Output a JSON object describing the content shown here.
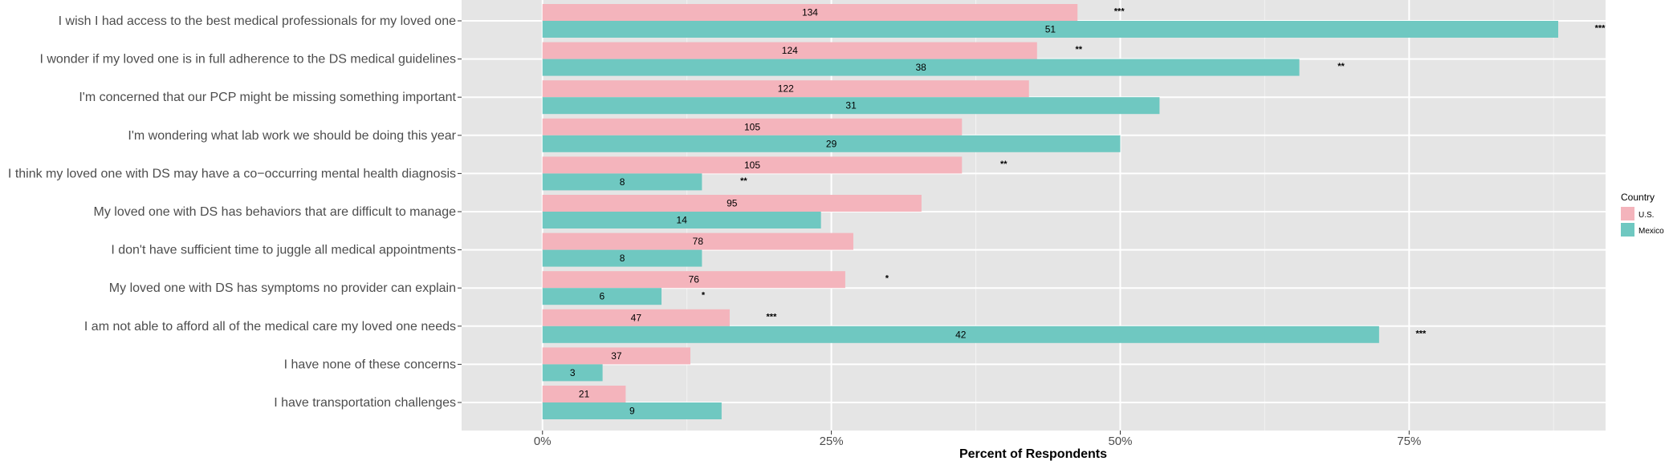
{
  "chart_data": {
    "type": "bar",
    "orientation": "horizontal",
    "title": "",
    "xlabel": "Percent of Respondents",
    "ylabel": "",
    "xlim": [
      -0.07,
      0.92
    ],
    "x_ticks": [
      0,
      0.25,
      0.5,
      0.75
    ],
    "x_tick_labels": [
      "0%",
      "25%",
      "50%",
      "75%"
    ],
    "grid": true,
    "legend": {
      "title": "Country",
      "position": "right"
    },
    "categories": [
      "I wish I had access to the best medical professionals for my loved one",
      "I wonder if my loved one is in full adherence to the DS medical guidelines",
      "I'm concerned that our PCP might be missing something important",
      "I'm wondering what lab work we should be doing this year",
      "I think my loved one with DS may have a co−occurring mental health diagnosis",
      "My loved one with DS has behaviors that are difficult to manage",
      "I don't have sufficient time to juggle all medical appointments",
      "My loved one with DS has symptoms no provider can explain",
      "I am not able to afford all of the medical care my loved one needs",
      "I have none of these concerns",
      "I have transportation challenges"
    ],
    "series": [
      {
        "name": "U.S.",
        "color": "#f4b4bc",
        "values": [
          0.463,
          0.428,
          0.421,
          0.363,
          0.363,
          0.328,
          0.269,
          0.262,
          0.162,
          0.128,
          0.072
        ],
        "counts": [
          "134",
          "124",
          "122",
          "105",
          "105",
          "95",
          "78",
          "76",
          "47",
          "37",
          "21"
        ],
        "significance": [
          "***",
          "**",
          "",
          "",
          "**",
          "",
          "",
          "*",
          "***",
          "",
          ""
        ]
      },
      {
        "name": "Mexico",
        "color": "#6fc8c1",
        "values": [
          0.879,
          0.655,
          0.534,
          0.5,
          0.138,
          0.241,
          0.138,
          0.103,
          0.724,
          0.052,
          0.155
        ],
        "counts": [
          "51",
          "38",
          "31",
          "29",
          "8",
          "14",
          "8",
          "6",
          "42",
          "3",
          "9"
        ],
        "significance": [
          "***",
          "**",
          "",
          "",
          "**",
          "",
          "",
          "*",
          "***",
          "",
          ""
        ]
      }
    ]
  }
}
